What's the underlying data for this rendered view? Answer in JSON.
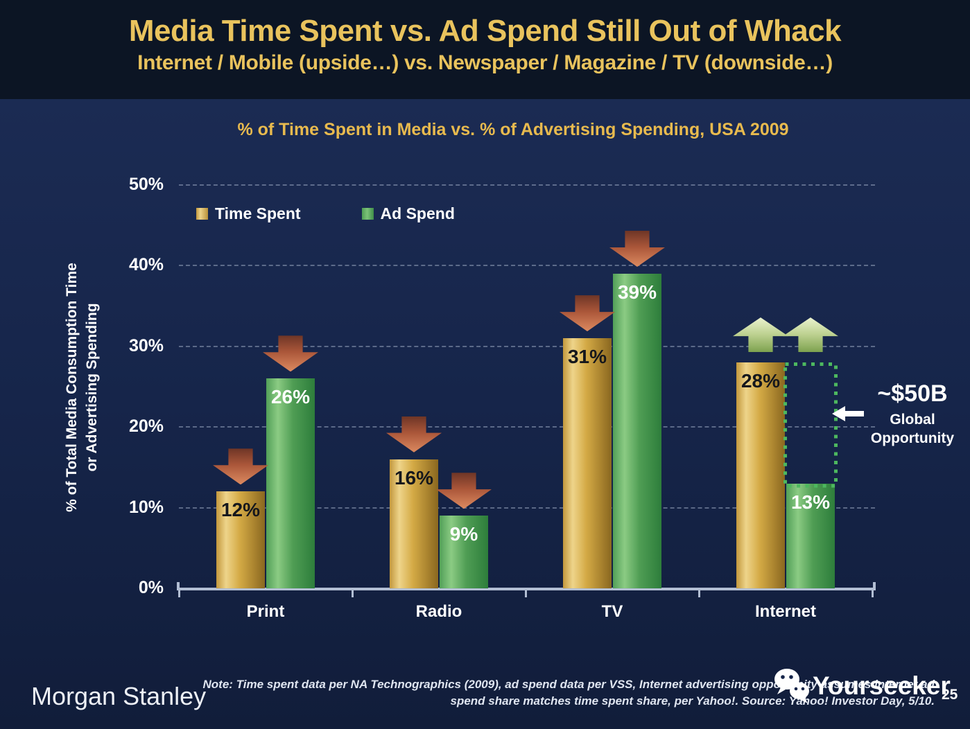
{
  "header": {
    "title": "Media Time Spent vs. Ad Spend Still Out of Whack",
    "subtitle": "Internet / Mobile (upside…) vs. Newspaper / Magazine / TV (downside…)"
  },
  "chart_data": {
    "type": "bar",
    "title": "% of Time Spent in Media vs. % of Advertising Spending, USA 2009",
    "categories": [
      "Print",
      "Radio",
      "TV",
      "Internet"
    ],
    "series": [
      {
        "name": "Time Spent",
        "color": "#d4aa45",
        "values": [
          12,
          16,
          31,
          28
        ]
      },
      {
        "name": "Ad Spend",
        "color": "#4f9d54",
        "values": [
          26,
          9,
          39,
          13
        ]
      }
    ],
    "ylabel_line1": "% of Total Media Consumption Time",
    "ylabel_line2": "or Advertising Spending",
    "ylim": [
      0,
      50
    ],
    "yticks": [
      "0%",
      "10%",
      "20%",
      "30%",
      "40%",
      "50%"
    ],
    "grid": "dashed horizontal",
    "legend_position": "top-left inside",
    "annotations": {
      "down_arrows": [
        [
          0,
          0
        ],
        [
          0,
          1
        ],
        [
          1,
          0
        ],
        [
          1,
          1
        ],
        [
          2,
          0
        ],
        [
          2,
          1
        ]
      ],
      "up_arrows": {
        "category": 3,
        "series": [
          0,
          1
        ]
      },
      "opportunity": {
        "category": 3,
        "from_value": 13,
        "to_value": 28,
        "label": "~$50B",
        "sub1": "Global",
        "sub2": "Opportunity"
      }
    }
  },
  "footer": {
    "brand": "Morgan Stanley",
    "note_line1": "Note: Time spent data per NA Technographics (2009), ad spend data per VSS, Internet advertising opportunity assumes internet ad",
    "note_line2": "spend share matches time spent share, per Yahoo!. Source: Yahoo! Investor Day, 5/10.",
    "watermark": "Yourseeker",
    "page_number": "25"
  },
  "colors": {
    "background_body": "#16254a",
    "background_header": "#0c1524",
    "title_gold": "#e9c35d",
    "bar_gold": "#d4aa45",
    "bar_green": "#4f9d54",
    "down_arrow_red": "#aa5639",
    "up_arrow_green": "#bcd08f",
    "dotted_box_green": "#4db85f",
    "axis_gray": "#b2bed3"
  }
}
